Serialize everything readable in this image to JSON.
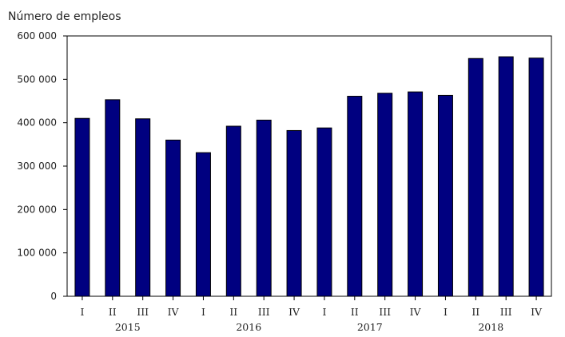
{
  "chart_data": {
    "type": "bar",
    "title": "",
    "ylabel": "Número de empleos",
    "xlabel": "",
    "categories": [
      "I",
      "II",
      "III",
      "IV",
      "I",
      "II",
      "III",
      "IV",
      "I",
      "II",
      "III",
      "IV",
      "I",
      "II",
      "III",
      "IV"
    ],
    "years": [
      "2015",
      "2016",
      "2017",
      "2018"
    ],
    "values": [
      410000,
      453000,
      409000,
      360000,
      331000,
      392000,
      406000,
      382000,
      388000,
      461000,
      468000,
      471000,
      463000,
      548000,
      552000,
      549000
    ],
    "ylim": [
      0,
      600000
    ],
    "yticks": [
      0,
      100000,
      200000,
      300000,
      400000,
      500000,
      600000
    ],
    "ytick_labels": [
      "0",
      "100 000",
      "200 000",
      "300 000",
      "400 000",
      "500 000",
      "600 000"
    ],
    "grid": false,
    "colors": {
      "bar": "#000080",
      "bar_edge": "#000000",
      "axis": "#000000"
    }
  }
}
